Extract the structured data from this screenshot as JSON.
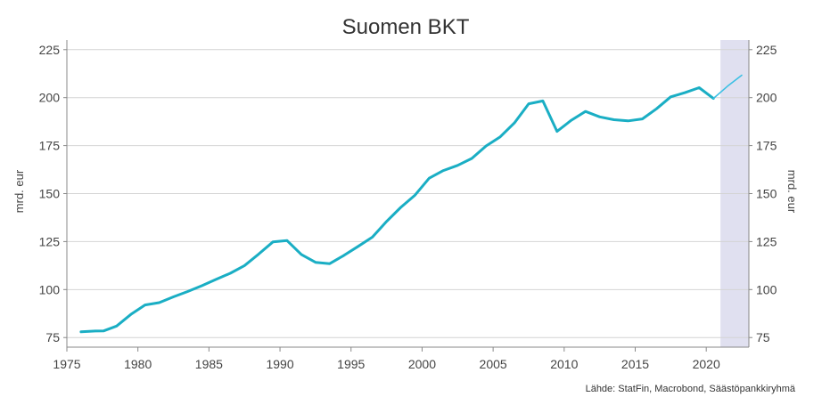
{
  "chart_data": {
    "type": "line",
    "title": "Suomen BKT",
    "ylabel_left": "mrd. eur",
    "ylabel_right": "mrd. eur",
    "source": "Lähde: StatFin, Macrobond, Säästöpankkiryhmä",
    "xlim": [
      1975,
      2023
    ],
    "ylim": [
      70,
      230
    ],
    "x_ticks": [
      1975,
      1980,
      1985,
      1990,
      1995,
      2000,
      2005,
      2010,
      2015,
      2020
    ],
    "y_ticks": [
      75,
      100,
      125,
      150,
      175,
      200,
      225
    ],
    "grid": true,
    "forecast_shade": {
      "from": 2021,
      "to": 2023,
      "color": "#e0e0f0"
    },
    "series": [
      {
        "color": "#1aaec4",
        "style": "actual",
        "points": [
          [
            1976,
            78.0
          ],
          [
            1977,
            78.4
          ],
          [
            1977.6,
            78.5
          ],
          [
            1978.5,
            81.0
          ],
          [
            1979.5,
            87.0
          ],
          [
            1980.5,
            92.0
          ],
          [
            1981.5,
            93.2
          ],
          [
            1982.5,
            96.2
          ],
          [
            1983.5,
            99.0
          ],
          [
            1984.5,
            102.0
          ],
          [
            1985.5,
            105.3
          ],
          [
            1986.5,
            108.5
          ],
          [
            1987.5,
            112.5
          ],
          [
            1988.5,
            118.5
          ],
          [
            1989.5,
            124.8
          ],
          [
            1990.5,
            125.5
          ],
          [
            1991.5,
            118.3
          ],
          [
            1992.5,
            114.2
          ],
          [
            1993.5,
            113.5
          ],
          [
            1994.5,
            117.8
          ],
          [
            1995.5,
            122.5
          ],
          [
            1996.5,
            127.3
          ],
          [
            1997.5,
            135.5
          ],
          [
            1998.5,
            142.8
          ],
          [
            1999.5,
            149.2
          ],
          [
            2000.5,
            158.0
          ],
          [
            2001.5,
            162.0
          ],
          [
            2002.5,
            164.7
          ],
          [
            2003.5,
            168.3
          ],
          [
            2004.5,
            174.8
          ],
          [
            2005.5,
            179.6
          ],
          [
            2006.5,
            186.8
          ],
          [
            2007.5,
            196.8
          ],
          [
            2008.5,
            198.3
          ],
          [
            2009.5,
            182.4
          ],
          [
            2010.5,
            188.2
          ],
          [
            2011.5,
            192.8
          ],
          [
            2012.5,
            190.0
          ],
          [
            2013.5,
            188.5
          ],
          [
            2014.5,
            187.9
          ],
          [
            2015.5,
            188.9
          ],
          [
            2016.5,
            194.2
          ],
          [
            2017.5,
            200.4
          ],
          [
            2018.5,
            202.6
          ],
          [
            2019.5,
            205.2
          ],
          [
            2020.5,
            199.6
          ]
        ]
      },
      {
        "color": "#3cc0e4",
        "style": "forecast",
        "points": [
          [
            2020.5,
            199.6
          ],
          [
            2021.5,
            206.0
          ],
          [
            2022.5,
            211.7
          ]
        ]
      }
    ]
  }
}
